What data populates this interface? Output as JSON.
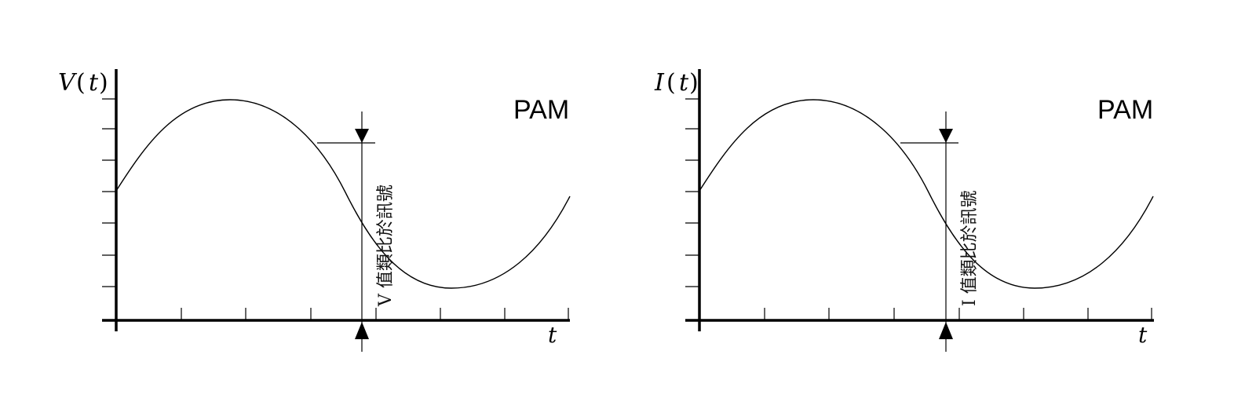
{
  "panels": [
    {
      "y_symbol": "V",
      "y_paren_open": "(",
      "y_arg": "t",
      "y_paren_close": ")",
      "x_label": "t",
      "mode_label": "PAM",
      "sample_annotation": "V 值類比於訊號"
    },
    {
      "y_symbol": "I",
      "y_paren_open": "(",
      "y_arg": "t",
      "y_paren_close": ")",
      "x_label": "t",
      "mode_label": "PAM",
      "sample_annotation": "I 值類比於訊號"
    }
  ]
}
